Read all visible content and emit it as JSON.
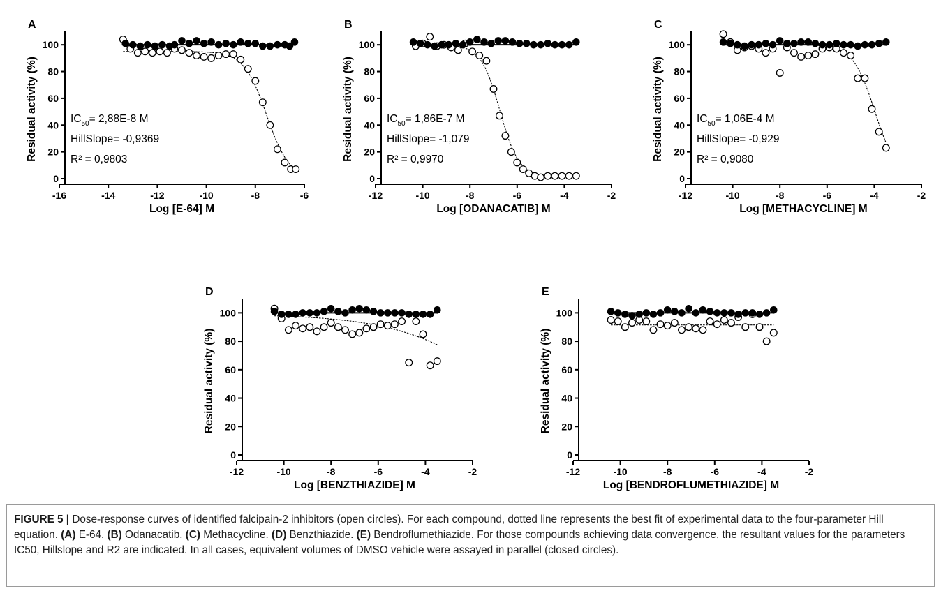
{
  "chart_data": [
    {
      "type": "scatter",
      "panel": "A",
      "xlabel": "Log [E-64] M",
      "ylabel": "Residual activity (%)",
      "xlim": [
        -16,
        -6
      ],
      "ylim": [
        0,
        110
      ],
      "xticks": [
        -16,
        -14,
        -12,
        -10,
        -8,
        -6
      ],
      "yticks": [
        0,
        20,
        40,
        60,
        80,
        100
      ],
      "annotations": {
        "ic50_label": "IC",
        "ic50_sub": "50",
        "ic50_value": "= 2,88E-8 M",
        "hillslope": "HillSlope= -0,9369",
        "r2": "R² = 0,9803"
      },
      "fit": {
        "top": 95,
        "bottom": 0,
        "logIC50": -7.54,
        "hill": 0.9369
      },
      "control": {
        "x": [
          -13.3,
          -13.0,
          -12.7,
          -12.4,
          -12.1,
          -11.8,
          -11.5,
          -11.3,
          -11.0,
          -10.7,
          -10.4,
          -10.1,
          -9.8,
          -9.5,
          -9.2,
          -8.9,
          -8.6,
          -8.3,
          -8.0,
          -7.7,
          -7.4,
          -7.1,
          -6.8,
          -6.6,
          -6.4
        ],
        "y": [
          101,
          100,
          99,
          100,
          99,
          100,
          99,
          100,
          103,
          101,
          103,
          101,
          102,
          100,
          101,
          100,
          102,
          101,
          101,
          99,
          99,
          100,
          100,
          99,
          102
        ]
      },
      "inhibitor": {
        "x": [
          -13.4,
          -13.1,
          -12.8,
          -12.5,
          -12.2,
          -11.9,
          -11.6,
          -11.3,
          -11.0,
          -10.7,
          -10.4,
          -10.1,
          -9.8,
          -9.5,
          -9.2,
          -8.9,
          -8.6,
          -8.3,
          -8.0,
          -7.7,
          -7.4,
          -7.1,
          -6.8,
          -6.55,
          -6.35
        ],
        "y": [
          104,
          97,
          94,
          95,
          94,
          95,
          94,
          97,
          96,
          94,
          92,
          91,
          90,
          92,
          93,
          93,
          89,
          82,
          73,
          57,
          40,
          22,
          12,
          7,
          7
        ]
      }
    },
    {
      "type": "scatter",
      "panel": "B",
      "xlabel": "Log [ODANACATIB] M",
      "ylabel": "Residual activity (%)",
      "xlim": [
        -12,
        -2
      ],
      "ylim": [
        0,
        110
      ],
      "xticks": [
        -12,
        -10,
        -8,
        -6,
        -4,
        -2
      ],
      "yticks": [
        0,
        20,
        40,
        60,
        80,
        100
      ],
      "annotations": {
        "ic50_label": "IC",
        "ic50_sub": "50",
        "ic50_value": "= 1,86E-7 M",
        "hillslope": "HillSlope= -1,079",
        "r2": "R² = 0,9970"
      },
      "fit": {
        "top": 100,
        "bottom": 1.5,
        "logIC50": -6.73,
        "hill": 1.079
      },
      "control": {
        "x": [
          -10.4,
          -10.1,
          -9.8,
          -9.5,
          -9.2,
          -8.9,
          -8.6,
          -8.3,
          -8.0,
          -7.7,
          -7.4,
          -7.1,
          -6.8,
          -6.5,
          -6.2,
          -5.9,
          -5.6,
          -5.3,
          -5.0,
          -4.7,
          -4.4,
          -4.1,
          -3.8,
          -3.5
        ],
        "y": [
          102,
          101,
          100,
          99,
          100,
          100,
          101,
          100,
          102,
          104,
          102,
          101,
          103,
          103,
          102,
          101,
          101,
          100,
          100,
          101,
          100,
          100,
          100,
          102
        ]
      },
      "inhibitor": {
        "x": [
          -10.3,
          -10.0,
          -9.7,
          -9.4,
          -9.1,
          -8.8,
          -8.5,
          -8.2,
          -7.9,
          -7.6,
          -7.3,
          -7.0,
          -6.75,
          -6.5,
          -6.25,
          -6.0,
          -5.75,
          -5.5,
          -5.25,
          -5.0,
          -4.7,
          -4.4,
          -4.1,
          -3.8,
          -3.5
        ],
        "y": [
          99,
          101,
          106,
          99,
          100,
          98,
          96,
          101,
          95,
          92,
          88,
          67,
          47,
          32,
          20,
          12,
          7,
          4,
          2,
          1,
          2,
          2,
          2,
          2,
          2
        ]
      }
    },
    {
      "type": "scatter",
      "panel": "C",
      "xlabel": "Log [METHACYCLINE]  M",
      "ylabel": "Residual activity (%)",
      "xlim": [
        -12,
        -2
      ],
      "ylim": [
        0,
        110
      ],
      "xticks": [
        -12,
        -10,
        -8,
        -6,
        -4,
        -2
      ],
      "yticks": [
        0,
        20,
        40,
        60,
        80,
        100
      ],
      "annotations": {
        "ic50_label": "IC",
        "ic50_sub": "50",
        "ic50_value": "= 1,06E-4 M",
        "hillslope": "HillSlope= -0,929",
        "r2": "R² = 0,9080"
      },
      "fit": {
        "top": 100,
        "bottom": 0,
        "logIC50": -3.97,
        "hill": 0.929
      },
      "control": {
        "x": [
          -10.4,
          -10.1,
          -9.8,
          -9.5,
          -9.2,
          -8.9,
          -8.6,
          -8.3,
          -8.0,
          -7.7,
          -7.4,
          -7.1,
          -6.8,
          -6.5,
          -6.2,
          -5.9,
          -5.6,
          -5.3,
          -5.0,
          -4.7,
          -4.4,
          -4.1,
          -3.8,
          -3.5
        ],
        "y": [
          102,
          101,
          100,
          99,
          100,
          100,
          101,
          100,
          103,
          101,
          101,
          102,
          102,
          101,
          100,
          100,
          101,
          100,
          100,
          99,
          100,
          100,
          101,
          102
        ]
      },
      "inhibitor": {
        "x": [
          -10.4,
          -10.1,
          -9.8,
          -9.5,
          -9.2,
          -8.9,
          -8.6,
          -8.3,
          -8.0,
          -7.7,
          -7.4,
          -7.1,
          -6.8,
          -6.5,
          -6.2,
          -5.9,
          -5.6,
          -5.3,
          -5.0,
          -4.7,
          -4.4,
          -4.1,
          -3.8,
          -3.5
        ],
        "y": [
          108,
          102,
          96,
          98,
          99,
          97,
          94,
          97,
          79,
          98,
          94,
          91,
          92,
          93,
          97,
          98,
          97,
          94,
          92,
          75,
          75,
          52,
          35,
          23
        ]
      }
    },
    {
      "type": "scatter",
      "panel": "D",
      "xlabel": "Log [BENZTHIAZIDE] M",
      "ylabel": "Residual activity (%)",
      "xlim": [
        -12,
        -2
      ],
      "ylim": [
        0,
        110
      ],
      "xticks": [
        -12,
        -10,
        -8,
        -6,
        -4,
        -2
      ],
      "yticks": [
        0,
        20,
        40,
        60,
        80,
        100
      ],
      "annotations": {},
      "fit": {
        "top": 99,
        "bottom": 0,
        "logIC50": -0.7,
        "hill": 0.2
      },
      "control": {
        "x": [
          -10.4,
          -10.1,
          -9.8,
          -9.5,
          -9.2,
          -8.9,
          -8.6,
          -8.3,
          -8.0,
          -7.7,
          -7.4,
          -7.1,
          -6.8,
          -6.5,
          -6.2,
          -5.9,
          -5.6,
          -5.3,
          -5.0,
          -4.7,
          -4.4,
          -4.1,
          -3.8,
          -3.5
        ],
        "y": [
          101,
          99,
          99,
          99,
          100,
          100,
          100,
          101,
          103,
          101,
          100,
          102,
          103,
          102,
          101,
          100,
          100,
          100,
          100,
          99,
          99,
          99,
          99,
          102
        ]
      },
      "inhibitor": {
        "x": [
          -10.4,
          -10.1,
          -9.8,
          -9.5,
          -9.2,
          -8.9,
          -8.6,
          -8.3,
          -8.0,
          -7.7,
          -7.4,
          -7.1,
          -6.8,
          -6.5,
          -6.2,
          -5.9,
          -5.6,
          -5.3,
          -5.0,
          -4.7,
          -4.4,
          -4.1,
          -3.8,
          -3.5
        ],
        "y": [
          103,
          96,
          88,
          91,
          89,
          90,
          87,
          90,
          93,
          90,
          88,
          85,
          86,
          89,
          90,
          92,
          91,
          92,
          94,
          65,
          94,
          85,
          63,
          66
        ]
      }
    },
    {
      "type": "scatter",
      "panel": "E",
      "xlabel": "Log [BENDROFLUMETHIAZIDE] M",
      "ylabel": "Residual activity (%)",
      "xlim": [
        -12,
        -2
      ],
      "ylim": [
        0,
        110
      ],
      "xticks": [
        -12,
        -10,
        -8,
        -6,
        -4,
        -2
      ],
      "yticks": [
        0,
        20,
        40,
        60,
        80,
        100
      ],
      "annotations": {},
      "fit": {
        "top": 91.5,
        "bottom": 91.5,
        "logIC50": -6.0,
        "hill": 1.0
      },
      "control": {
        "x": [
          -10.4,
          -10.1,
          -9.8,
          -9.5,
          -9.2,
          -8.9,
          -8.6,
          -8.3,
          -8.0,
          -7.7,
          -7.4,
          -7.1,
          -6.8,
          -6.5,
          -6.2,
          -5.9,
          -5.6,
          -5.3,
          -5.0,
          -4.7,
          -4.4,
          -4.1,
          -3.8,
          -3.5
        ],
        "y": [
          101,
          100,
          99,
          98,
          99,
          100,
          99,
          100,
          102,
          101,
          100,
          103,
          100,
          102,
          101,
          100,
          100,
          100,
          99,
          100,
          100,
          99,
          100,
          102
        ]
      },
      "inhibitor": {
        "x": [
          -10.4,
          -10.1,
          -9.8,
          -9.5,
          -9.2,
          -8.9,
          -8.6,
          -8.3,
          -8.0,
          -7.7,
          -7.4,
          -7.1,
          -6.8,
          -6.5,
          -6.2,
          -5.9,
          -5.6,
          -5.3,
          -5.0,
          -4.7,
          -4.4,
          -4.1,
          -3.8,
          -3.5
        ],
        "y": [
          95,
          94,
          90,
          93,
          95,
          94,
          88,
          92,
          91,
          93,
          88,
          90,
          89,
          88,
          94,
          92,
          95,
          93,
          97,
          90,
          99,
          90,
          80,
          86
        ]
      }
    }
  ],
  "caption": {
    "label": "FIGURE 5 |",
    "s1": " Dose-response curves of identified falcipain-2 inhibitors (open circles). For each compound, dotted line represents the best fit of experimental data to the four-parameter Hill equation. ",
    "a_tag": "(A)",
    "a_text": " E-64. ",
    "b_tag": "(B)",
    "b_text": " Odanacatib. ",
    "c_tag": "(C)",
    "c_text": " Methacycline. ",
    "d_tag": "(D)",
    "d_text": " Benzthiazide. ",
    "e_tag": "(E)",
    "e_text": " Bendroflumethiazide. For those compounds achieving data convergence, the resultant values for the parameters IC50, Hillslope and R2 are indicated. In all cases, equivalent volumes of DMSO vehicle were assayed in parallel (closed circles)."
  }
}
